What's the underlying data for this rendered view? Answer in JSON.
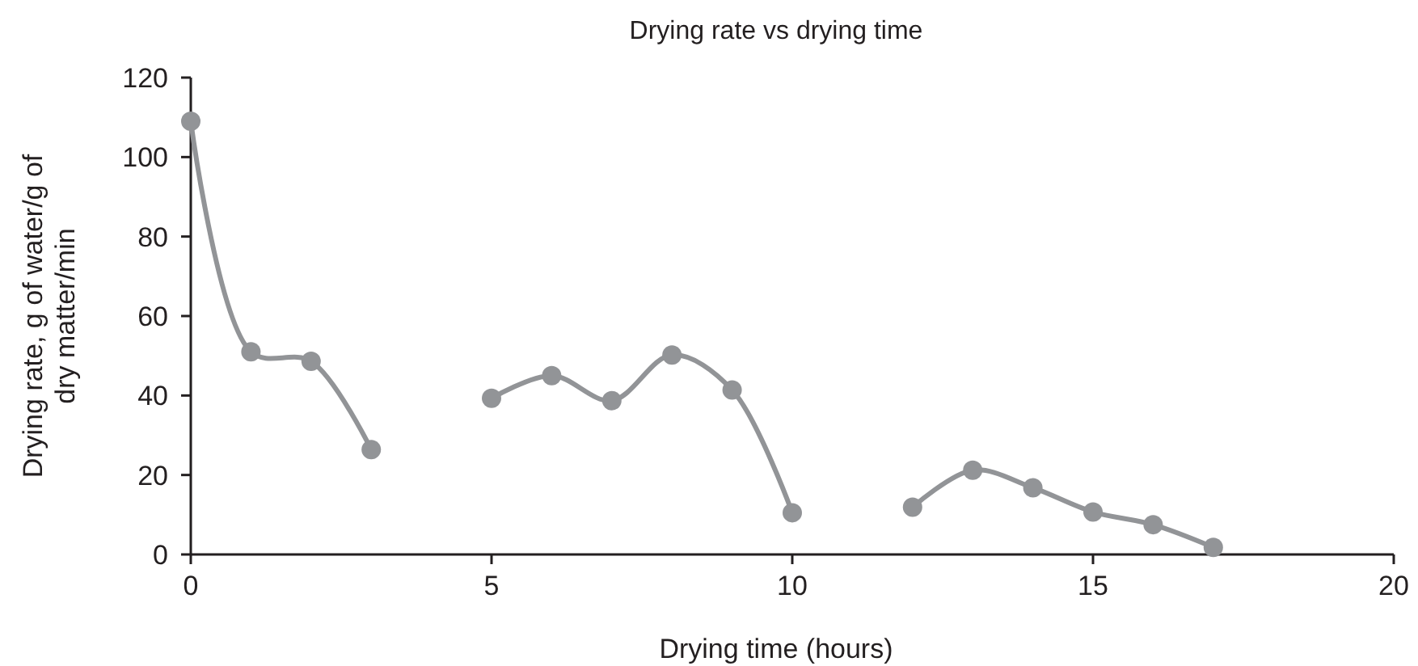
{
  "chart_data": {
    "type": "line",
    "title": "Drying rate vs drying time",
    "xlabel": "Drying time (hours)",
    "ylabel": "Drying rate, g of water/g of dry matter/min",
    "x": [
      0,
      1,
      2,
      3,
      4,
      5,
      6,
      7,
      8,
      9,
      10,
      11,
      12,
      13,
      14,
      15,
      16,
      17
    ],
    "series": [
      {
        "color": "#929497",
        "values": [
          109,
          51,
          48.6,
          26.4,
          null,
          39.3,
          45,
          38.7,
          50.2,
          41.4,
          10.5,
          null,
          11.9,
          21.2,
          16.8,
          10.7,
          7.5,
          1.8
        ]
      }
    ],
    "xlim": [
      0,
      20
    ],
    "xticks": [
      0,
      5,
      10,
      15,
      20
    ],
    "ylim": [
      0,
      120
    ],
    "yticks": [
      0,
      20,
      40,
      60,
      80,
      100,
      120
    ],
    "marker": "circle",
    "line_style": "solid",
    "grid": false
  }
}
